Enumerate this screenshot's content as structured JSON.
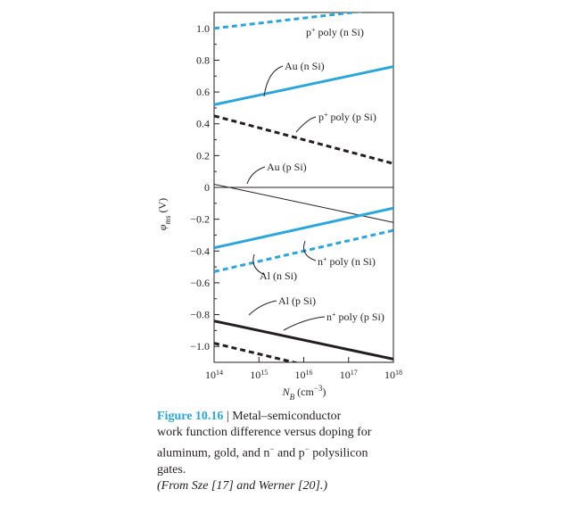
{
  "chart_data": {
    "type": "line",
    "title": "",
    "xlabel": "N_B (cm^-3)",
    "ylabel": "φms (V)",
    "xscale": "log",
    "xlim": [
      100000000000000.0,
      1e+18
    ],
    "ylim": [
      -1.1,
      1.1
    ],
    "yticks": [
      -1.0,
      -0.8,
      -0.6,
      -0.4,
      -0.2,
      0,
      0.2,
      0.4,
      0.6,
      0.8,
      1.0
    ],
    "ytick_labels": [
      "−1.0",
      "−0.8",
      "−0.6",
      "−0.4",
      "−0.2",
      "0",
      "0.2",
      "0.4",
      "0.6",
      "0.8",
      "1.0"
    ],
    "xtick_exponents": [
      "14",
      "15",
      "16",
      "17",
      "18"
    ],
    "xtick_base": "10",
    "x_label_main": "N",
    "x_label_sub": "B",
    "x_label_unit": " (cm",
    "x_label_exp": "−3",
    "x_label_close": ")",
    "y_label_main": "φ",
    "y_label_sub": "ms",
    "y_label_unit": " (V)",
    "colors": {
      "blue": "#2aa6dd",
      "black": "#231f20"
    },
    "series": [
      {
        "label": "p+ poly (n Si)",
        "x": [
          100000000000000.0,
          1e+18
        ],
        "y": [
          1.0,
          1.13
        ],
        "color": "blue",
        "dashed": true
      },
      {
        "label": "Au (n Si)",
        "x": [
          100000000000000.0,
          1e+18
        ],
        "y": [
          0.52,
          0.76
        ],
        "color": "blue",
        "dashed": false
      },
      {
        "label": "p+ poly (p Si)",
        "x": [
          100000000000000.0,
          1e+18
        ],
        "y": [
          0.45,
          0.15
        ],
        "color": "black",
        "dashed": true
      },
      {
        "label": "Au (p Si)",
        "x": [
          100000000000000.0,
          1e+18
        ],
        "y": [
          0.02,
          -0.22
        ],
        "color": "black",
        "dashed": false,
        "thin": true
      },
      {
        "label": "Al (n Si)",
        "x": [
          100000000000000.0,
          1e+18
        ],
        "y": [
          -0.38,
          -0.13
        ],
        "color": "blue",
        "dashed": false
      },
      {
        "label": "n+ poly (n Si)",
        "x": [
          100000000000000.0,
          1e+18
        ],
        "y": [
          -0.53,
          -0.27
        ],
        "color": "blue",
        "dashed": true
      },
      {
        "label": "Al (p Si)",
        "x": [
          100000000000000.0,
          1e+18
        ],
        "y": [
          -0.84,
          -1.08
        ],
        "color": "black",
        "dashed": false
      },
      {
        "label": "n+ poly (p Si)",
        "x": [
          100000000000000.0,
          1e+18
        ],
        "y": [
          -0.98,
          -1.25
        ],
        "color": "black",
        "dashed": true
      }
    ],
    "annotations": [
      {
        "series": 0,
        "base": "p",
        "sup": "+",
        "rest": " poly (n Si)"
      },
      {
        "series": 1,
        "base": "Au (n Si)",
        "sup": "",
        "rest": ""
      },
      {
        "series": 2,
        "base": "p",
        "sup": "+",
        "rest": " poly (p Si)"
      },
      {
        "series": 3,
        "base": "Au (p Si)",
        "sup": "",
        "rest": ""
      },
      {
        "series": 4,
        "base": "Al (n Si)",
        "sup": "",
        "rest": ""
      },
      {
        "series": 5,
        "base": "n",
        "sup": "+",
        "rest": " poly (n Si)"
      },
      {
        "series": 6,
        "base": "Al (p Si)",
        "sup": "",
        "rest": ""
      },
      {
        "series": 7,
        "base": "n",
        "sup": "+",
        "rest": " poly (p Si)"
      }
    ]
  },
  "caption": {
    "figure_number": "Figure 10.16",
    "separator": " | ",
    "line1": "Metal–semiconductor",
    "line2": "work function difference versus doping for",
    "line3a": "aluminum, gold, and n",
    "line3_sup1": "−",
    "line3b": " and p",
    "line3_sup2": "−",
    "line3c": " polysilicon",
    "line4": "gates.",
    "credit": "(From Sze [17] and Werner [20].)"
  }
}
